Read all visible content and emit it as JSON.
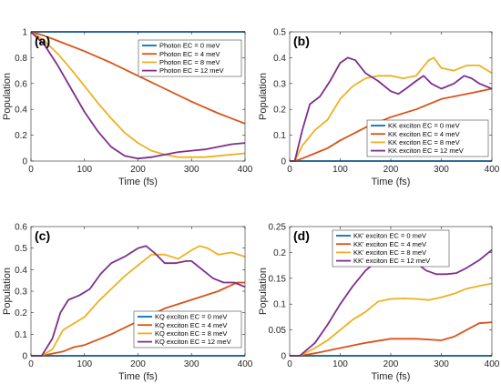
{
  "figure": {
    "colors": {
      "ec0": "#0072BD",
      "ec4": "#D95319",
      "ec8": "#EDB120",
      "ec12": "#7E2F8E",
      "axis": "#262626",
      "background": "#ffffff"
    }
  },
  "chart_data": [
    {
      "type": "line",
      "panel_label": "(a)",
      "xlabel": "Time (fs)",
      "ylabel": "Population",
      "xlim": [
        0,
        400
      ],
      "ylim": [
        0,
        1
      ],
      "xticks": [
        0,
        100,
        200,
        300,
        400
      ],
      "yticks": [
        0,
        0.2,
        0.4,
        0.6,
        0.8,
        1
      ],
      "ytick_labels": [
        "0",
        "0.2",
        "0.4",
        "0.6",
        "0.8",
        "1"
      ],
      "grid": false,
      "legend_position": "top-right",
      "series": [
        {
          "name": "Photon EC = 0 meV",
          "color": "#0072BD",
          "x": [
            0,
            400
          ],
          "y": [
            1.0,
            1.0
          ]
        },
        {
          "name": "Photon EC = 4 meV",
          "color": "#D95319",
          "x": [
            0,
            25,
            50,
            100,
            150,
            200,
            250,
            300,
            350,
            400
          ],
          "y": [
            1.0,
            0.97,
            0.93,
            0.85,
            0.76,
            0.66,
            0.56,
            0.46,
            0.37,
            0.29
          ]
        },
        {
          "name": "Photon EC = 8 meV",
          "color": "#EDB120",
          "x": [
            0,
            25,
            50,
            75,
            100,
            125,
            150,
            175,
            200,
            225,
            250,
            275,
            300,
            325,
            350,
            375,
            400
          ],
          "y": [
            1.0,
            0.93,
            0.83,
            0.71,
            0.58,
            0.45,
            0.33,
            0.22,
            0.14,
            0.08,
            0.05,
            0.03,
            0.03,
            0.03,
            0.04,
            0.05,
            0.06
          ]
        },
        {
          "name": "Photon EC = 12 meV",
          "color": "#7E2F8E",
          "x": [
            0,
            25,
            50,
            75,
            100,
            125,
            150,
            175,
            200,
            225,
            250,
            275,
            300,
            325,
            350,
            375,
            400
          ],
          "y": [
            1.0,
            0.9,
            0.74,
            0.56,
            0.38,
            0.23,
            0.11,
            0.04,
            0.02,
            0.03,
            0.05,
            0.07,
            0.08,
            0.09,
            0.11,
            0.13,
            0.14
          ]
        }
      ]
    },
    {
      "type": "line",
      "panel_label": "(b)",
      "xlabel": "Time (fs)",
      "ylabel": "Population",
      "xlim": [
        0,
        400
      ],
      "ylim": [
        0,
        0.5
      ],
      "xticks": [
        0,
        100,
        200,
        300,
        400
      ],
      "yticks": [
        0,
        0.1,
        0.2,
        0.3,
        0.4,
        0.5
      ],
      "ytick_labels": [
        "0",
        "0.1",
        "0.2",
        "0.3",
        "0.4",
        "0.5"
      ],
      "grid": false,
      "legend_position": "bottom-right",
      "series": [
        {
          "name": "KK exciton EC = 0 meV",
          "color": "#0072BD",
          "x": [
            0,
            400
          ],
          "y": [
            0,
            0
          ]
        },
        {
          "name": "KK exciton EC = 4 meV",
          "color": "#D95319",
          "x": [
            0,
            10,
            25,
            50,
            75,
            100,
            150,
            200,
            250,
            300,
            350,
            400
          ],
          "y": [
            0,
            0.0,
            0.01,
            0.03,
            0.05,
            0.08,
            0.13,
            0.17,
            0.2,
            0.24,
            0.26,
            0.28
          ]
        },
        {
          "name": "KK exciton EC = 8 meV",
          "color": "#EDB120",
          "x": [
            0,
            10,
            25,
            50,
            75,
            100,
            125,
            150,
            175,
            200,
            225,
            250,
            275,
            285,
            300,
            325,
            350,
            375,
            400
          ],
          "y": [
            0,
            0.0,
            0.06,
            0.12,
            0.16,
            0.24,
            0.29,
            0.32,
            0.33,
            0.33,
            0.32,
            0.33,
            0.39,
            0.4,
            0.36,
            0.35,
            0.37,
            0.37,
            0.34
          ]
        },
        {
          "name": "KK exciton EC = 12 meV",
          "color": "#7E2F8E",
          "x": [
            0,
            10,
            25,
            40,
            60,
            80,
            100,
            115,
            130,
            150,
            175,
            200,
            215,
            230,
            250,
            265,
            280,
            300,
            325,
            345,
            360,
            375,
            400
          ],
          "y": [
            0,
            0.0,
            0.12,
            0.22,
            0.25,
            0.31,
            0.38,
            0.4,
            0.39,
            0.34,
            0.31,
            0.27,
            0.26,
            0.28,
            0.31,
            0.33,
            0.3,
            0.28,
            0.3,
            0.33,
            0.32,
            0.3,
            0.28
          ]
        }
      ]
    },
    {
      "type": "line",
      "panel_label": "(c)",
      "xlabel": "Time (fs)",
      "ylabel": "Population",
      "xlim": [
        0,
        400
      ],
      "ylim": [
        0,
        0.6
      ],
      "xticks": [
        0,
        100,
        200,
        300,
        400
      ],
      "yticks": [
        0,
        0.1,
        0.2,
        0.3,
        0.4,
        0.5,
        0.6
      ],
      "ytick_labels": [
        "0",
        "0.1",
        "0.2",
        "0.3",
        "0.4",
        "0.5",
        "0.6"
      ],
      "grid": false,
      "legend_position": "bottom-right",
      "series": [
        {
          "name": "KQ exciton EC = 0 meV",
          "color": "#0072BD",
          "x": [
            0,
            400
          ],
          "y": [
            0,
            0
          ]
        },
        {
          "name": "KQ exciton EC = 4 meV",
          "color": "#D95319",
          "x": [
            0,
            20,
            40,
            60,
            80,
            100,
            150,
            200,
            250,
            300,
            350,
            385,
            400
          ],
          "y": [
            0,
            0.0,
            0.01,
            0.02,
            0.04,
            0.05,
            0.1,
            0.16,
            0.22,
            0.26,
            0.3,
            0.34,
            0.34
          ]
        },
        {
          "name": "KQ exciton EC = 8 meV",
          "color": "#EDB120",
          "x": [
            0,
            20,
            40,
            60,
            80,
            100,
            125,
            150,
            175,
            200,
            225,
            250,
            275,
            300,
            315,
            330,
            350,
            375,
            400
          ],
          "y": [
            0,
            0.0,
            0.03,
            0.12,
            0.15,
            0.18,
            0.25,
            0.31,
            0.37,
            0.42,
            0.47,
            0.47,
            0.45,
            0.49,
            0.51,
            0.5,
            0.47,
            0.48,
            0.46
          ]
        },
        {
          "name": "KQ exciton EC = 12 meV",
          "color": "#7E2F8E",
          "x": [
            0,
            20,
            40,
            55,
            70,
            90,
            110,
            130,
            150,
            175,
            200,
            215,
            230,
            250,
            270,
            290,
            300,
            320,
            340,
            360,
            380,
            400
          ],
          "y": [
            0,
            0.0,
            0.08,
            0.2,
            0.26,
            0.28,
            0.31,
            0.38,
            0.43,
            0.46,
            0.5,
            0.51,
            0.48,
            0.43,
            0.43,
            0.44,
            0.44,
            0.4,
            0.36,
            0.34,
            0.34,
            0.32
          ]
        }
      ]
    },
    {
      "type": "line",
      "panel_label": "(d)",
      "xlabel": "Time (fs)",
      "ylabel": "Population",
      "xlim": [
        0,
        400
      ],
      "ylim": [
        0,
        0.25
      ],
      "xticks": [
        0,
        100,
        200,
        300,
        400
      ],
      "yticks": [
        0,
        0.05,
        0.1,
        0.15,
        0.2,
        0.25
      ],
      "ytick_labels": [
        "0",
        "0.05",
        "0.1",
        "0.15",
        "0.2",
        "0.25"
      ],
      "grid": false,
      "legend_position": "top-center",
      "series": [
        {
          "name": "KK' exciton EC = 0 meV",
          "color": "#0072BD",
          "x": [
            0,
            400
          ],
          "y": [
            0,
            0
          ]
        },
        {
          "name": "KK' exciton EC = 4 meV",
          "color": "#D95319",
          "x": [
            0,
            20,
            50,
            100,
            150,
            200,
            250,
            300,
            325,
            350,
            375,
            400
          ],
          "y": [
            0,
            0.0,
            0.005,
            0.015,
            0.025,
            0.033,
            0.033,
            0.03,
            0.037,
            0.05,
            0.063,
            0.065
          ]
        },
        {
          "name": "KK' exciton EC = 8 meV",
          "color": "#EDB120",
          "x": [
            0,
            20,
            50,
            75,
            100,
            125,
            150,
            175,
            200,
            225,
            250,
            275,
            300,
            325,
            350,
            375,
            400
          ],
          "y": [
            0,
            0.0,
            0.015,
            0.03,
            0.05,
            0.07,
            0.085,
            0.105,
            0.11,
            0.111,
            0.11,
            0.108,
            0.113,
            0.12,
            0.13,
            0.135,
            0.14
          ]
        },
        {
          "name": "KK' exciton EC = 12 meV",
          "color": "#7E2F8E",
          "x": [
            0,
            20,
            50,
            75,
            100,
            125,
            150,
            175,
            200,
            225,
            250,
            270,
            290,
            310,
            330,
            350,
            375,
            400
          ],
          "y": [
            0,
            0.0,
            0.025,
            0.06,
            0.1,
            0.135,
            0.165,
            0.185,
            0.188,
            0.188,
            0.18,
            0.165,
            0.158,
            0.158,
            0.16,
            0.17,
            0.185,
            0.205
          ]
        }
      ]
    }
  ]
}
